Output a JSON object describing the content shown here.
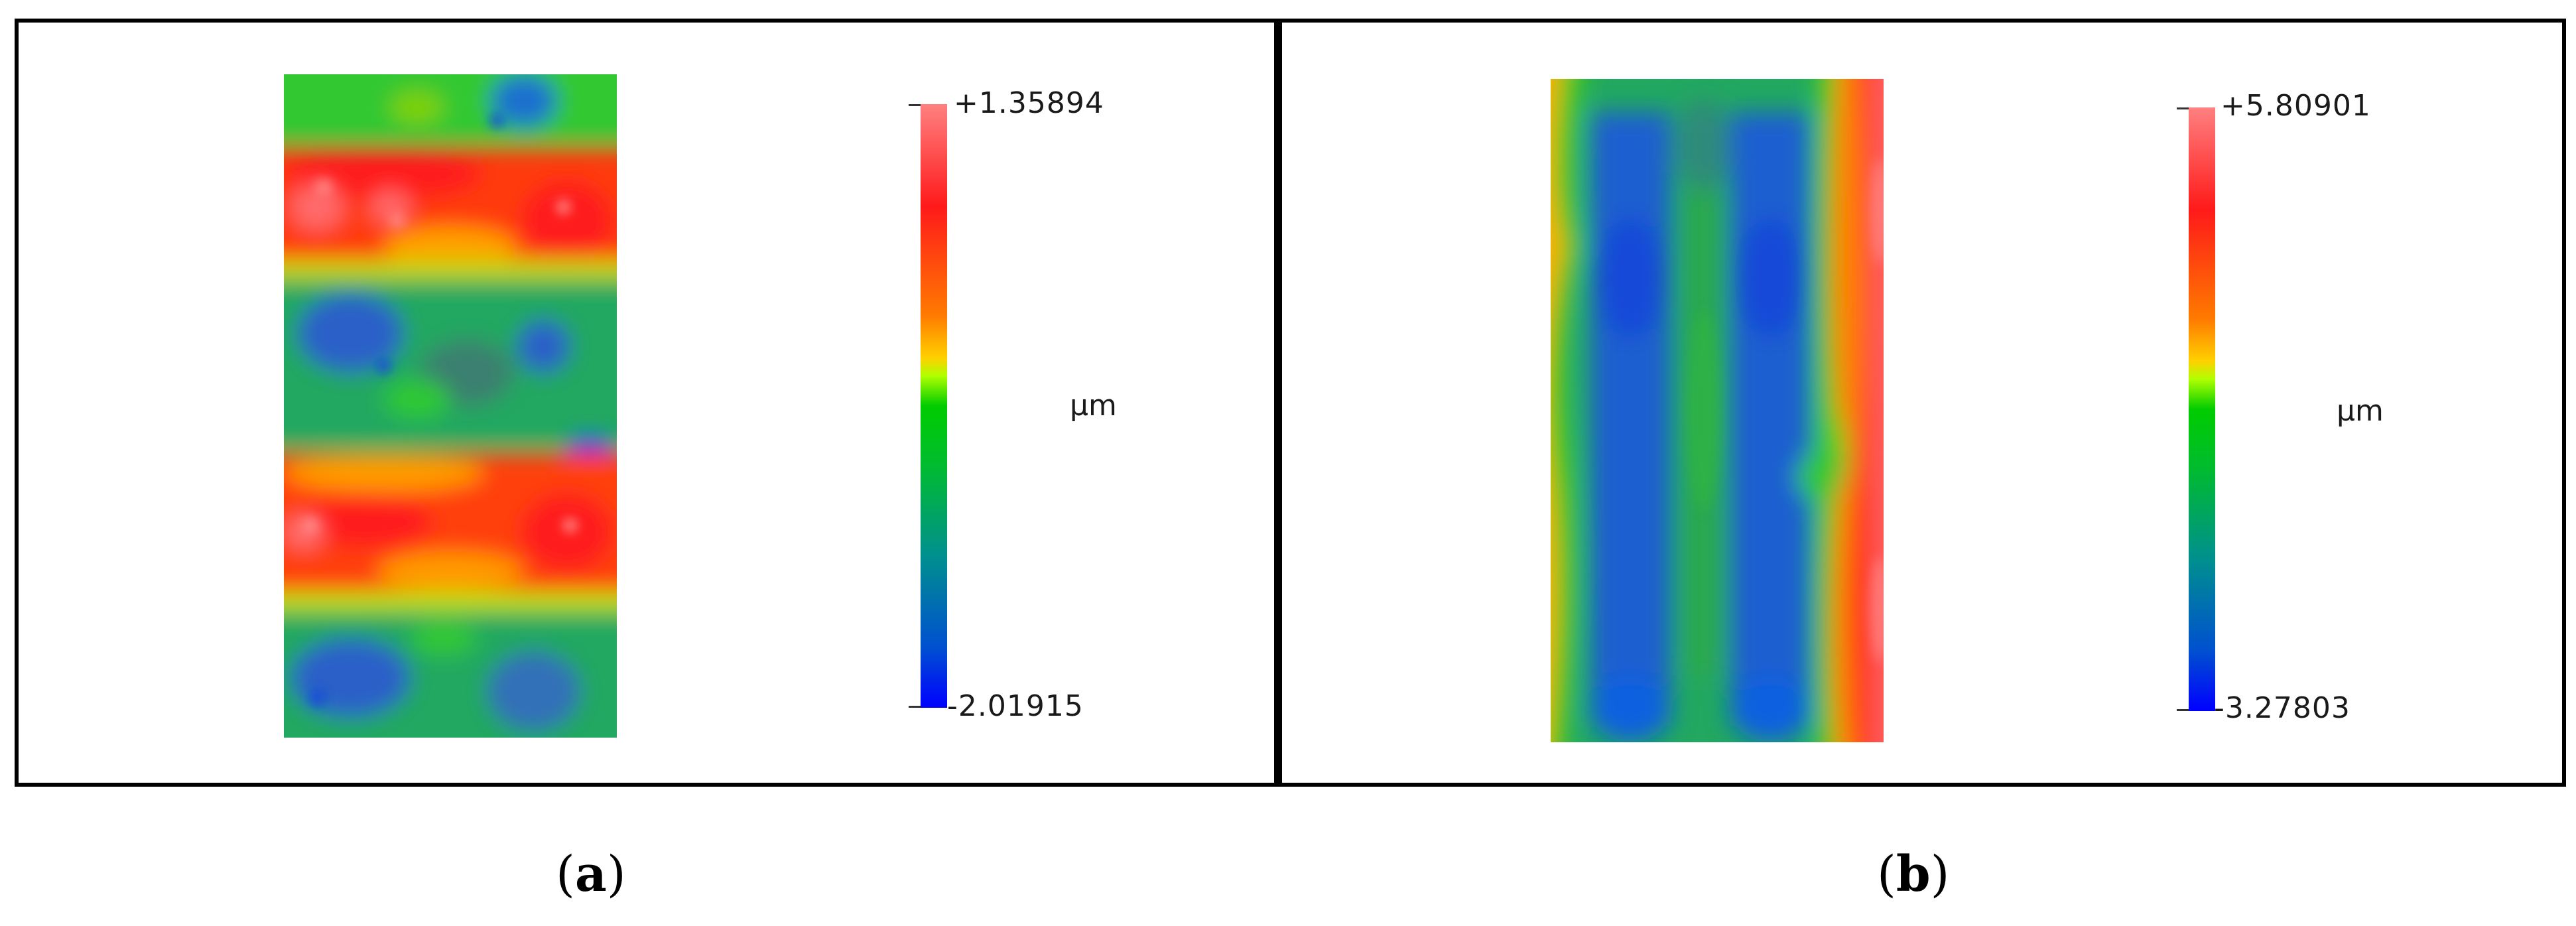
{
  "panels": [
    {
      "id": "a",
      "caption_letter": "a",
      "colorbar": {
        "max_label": "+1.35894",
        "min_label": "-2.01915",
        "unit": "µm"
      }
    },
    {
      "id": "b",
      "caption_letter": "b",
      "colorbar": {
        "max_label": "+5.80901",
        "min_label": "-3.27803",
        "unit": "µm"
      }
    }
  ],
  "colormap": [
    "#ff8080",
    "#ff1a1a",
    "#ff7a00",
    "#ffd000",
    "#b0ff00",
    "#00cc00",
    "#008f8f",
    "#0050d0",
    "#0000ff"
  ]
}
